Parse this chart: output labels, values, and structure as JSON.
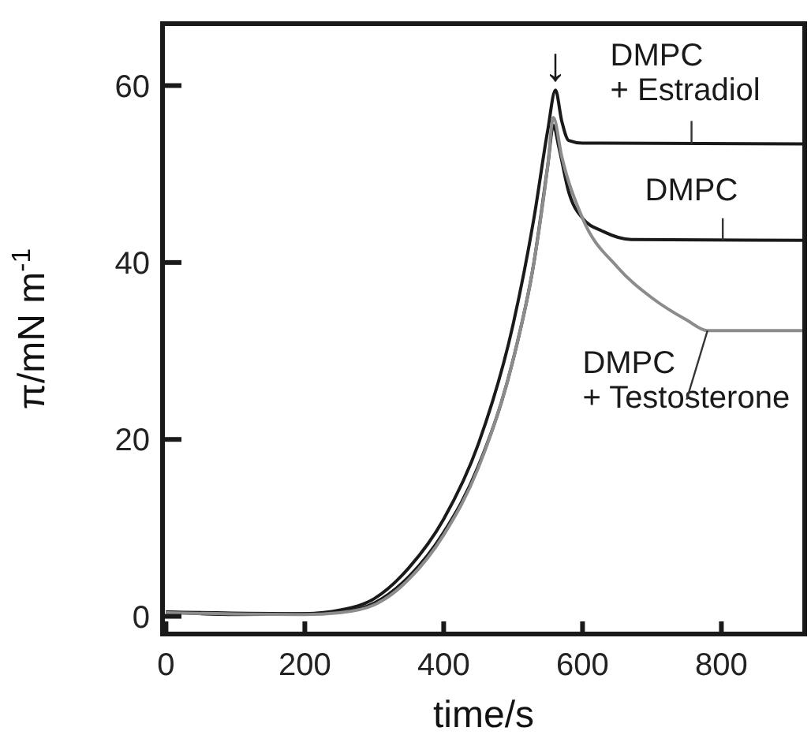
{
  "chart_data": {
    "type": "line",
    "xlabel": "time/s",
    "ylabel": "π/mN m$^{-1}$",
    "xlim": [
      -5,
      920
    ],
    "ylim": [
      -2,
      67
    ],
    "xticks": [
      0,
      200,
      400,
      600,
      800
    ],
    "yticks": [
      0,
      20,
      40,
      60
    ],
    "grid": false,
    "marker": "none",
    "line_style": "solid",
    "annotations": [
      {
        "text": "↓",
        "x": 561,
        "y": 59.5
      }
    ],
    "series": [
      {
        "name": "DMPC + Estradiol",
        "color": "#1a1a1a",
        "x": [
          0,
          100,
          200,
          250,
          300,
          350,
          400,
          450,
          500,
          530,
          550,
          561,
          570,
          580,
          600,
          920
        ],
        "values": [
          0.5,
          0.2,
          0.3,
          0.7,
          2,
          5.5,
          11,
          19.5,
          33,
          45,
          55,
          59.5,
          56,
          53.8,
          53.5,
          53.4
        ]
      },
      {
        "name": "DMPC",
        "color": "#1a1a1a",
        "x": [
          0,
          200,
          250,
          300,
          350,
          400,
          450,
          500,
          530,
          550,
          558,
          566,
          580,
          600,
          630,
          670,
          920
        ],
        "values": [
          0.5,
          0.3,
          0.5,
          1.5,
          4.5,
          9.5,
          17,
          29,
          40,
          51,
          55.5,
          53,
          48,
          45,
          43.5,
          42.6,
          42.5
        ]
      },
      {
        "name": "DMPC + Testosterone",
        "color": "#8c8c8c",
        "x": [
          0,
          200,
          250,
          300,
          350,
          400,
          450,
          500,
          530,
          550,
          558,
          570,
          600,
          650,
          700,
          750,
          780,
          920
        ],
        "values": [
          0.4,
          0.2,
          0.4,
          1.3,
          4.2,
          9.2,
          16.8,
          29,
          40,
          51,
          56.4,
          52,
          45,
          39.5,
          36,
          33.5,
          32.3,
          32.3
        ]
      }
    ]
  }
}
